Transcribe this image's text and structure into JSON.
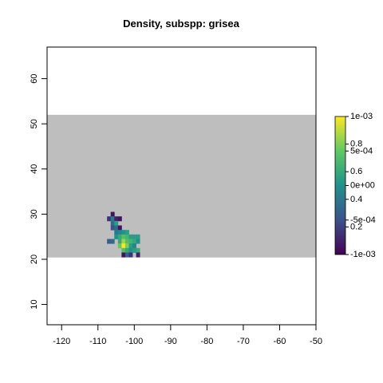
{
  "title": "Density, subspp: grisea",
  "chart_data": {
    "type": "heatmap",
    "title": "Density, subspp: grisea",
    "xlabel": "",
    "ylabel": "",
    "xlim": [
      -124,
      -50
    ],
    "ylim": [
      5.5,
      67
    ],
    "x_ticks": [
      -120,
      -110,
      -100,
      -90,
      -80,
      -70,
      -60,
      -50
    ],
    "y_ticks": [
      10,
      20,
      30,
      40,
      50,
      60
    ],
    "study_region": {
      "x": [
        -124,
        -50
      ],
      "y": [
        20.4,
        52
      ],
      "color": "#bebebe"
    },
    "cell_size": 1,
    "colorbar": {
      "overlay_ticks": [
        {
          "label": "1e-03",
          "value": 1.0
        },
        {
          "label": "5e-04",
          "value": 0.75
        },
        {
          "label": "0e+00",
          "value": 0.5
        },
        {
          "label": "-5e-04",
          "value": 0.25
        },
        {
          "label": "-1e-03",
          "value": 0.0
        }
      ],
      "underlay_ticks": [
        {
          "label": "0.8",
          "value": 0.8
        },
        {
          "label": "0.6",
          "value": 0.6
        },
        {
          "label": "0.4",
          "value": 0.4
        },
        {
          "label": "0.2",
          "value": 0.2
        }
      ]
    },
    "cells": [
      {
        "x": -106,
        "y": 30,
        "v": 0.05
      },
      {
        "x": -107,
        "y": 29,
        "v": 0.15
      },
      {
        "x": -106,
        "y": 29,
        "v": 0.4
      },
      {
        "x": -105,
        "y": 29,
        "v": 0.1
      },
      {
        "x": -104,
        "y": 29,
        "v": 0.05
      },
      {
        "x": -106,
        "y": 28,
        "v": 0.35
      },
      {
        "x": -105,
        "y": 28,
        "v": 0.55
      },
      {
        "x": -106,
        "y": 27,
        "v": 0.25
      },
      {
        "x": -105,
        "y": 27,
        "v": 0.35
      },
      {
        "x": -104,
        "y": 27,
        "v": 0.05
      },
      {
        "x": -105,
        "y": 26,
        "v": 0.4
      },
      {
        "x": -104,
        "y": 26,
        "v": 0.45
      },
      {
        "x": -103,
        "y": 26,
        "v": 0.5
      },
      {
        "x": -102,
        "y": 26,
        "v": 0.55
      },
      {
        "x": -105,
        "y": 25,
        "v": 0.5
      },
      {
        "x": -104,
        "y": 25,
        "v": 0.6
      },
      {
        "x": -103,
        "y": 25,
        "v": 0.7
      },
      {
        "x": -102,
        "y": 25,
        "v": 0.65
      },
      {
        "x": -101,
        "y": 25,
        "v": 0.55
      },
      {
        "x": -100,
        "y": 25,
        "v": 0.55
      },
      {
        "x": -99,
        "y": 25,
        "v": 0.55
      },
      {
        "x": -107,
        "y": 24,
        "v": 0.3
      },
      {
        "x": -106,
        "y": 24,
        "v": 0.35
      },
      {
        "x": -104,
        "y": 24,
        "v": 0.6
      },
      {
        "x": -103,
        "y": 24,
        "v": 0.85
      },
      {
        "x": -102,
        "y": 24,
        "v": 0.7
      },
      {
        "x": -101,
        "y": 24,
        "v": 0.65
      },
      {
        "x": -100,
        "y": 24,
        "v": 0.6
      },
      {
        "x": -99,
        "y": 24,
        "v": 0.5
      },
      {
        "x": -104,
        "y": 23,
        "v": 0.75
      },
      {
        "x": -103,
        "y": 23,
        "v": 1.0
      },
      {
        "x": -102,
        "y": 23,
        "v": 0.8
      },
      {
        "x": -101,
        "y": 23,
        "v": 0.55
      },
      {
        "x": -100,
        "y": 23,
        "v": 0.45
      },
      {
        "x": -103,
        "y": 22,
        "v": 0.7
      },
      {
        "x": -102,
        "y": 22,
        "v": 0.6
      },
      {
        "x": -101,
        "y": 22,
        "v": 0.5
      },
      {
        "x": -100,
        "y": 22,
        "v": 0.55
      },
      {
        "x": -99,
        "y": 22,
        "v": 0.6
      },
      {
        "x": -103,
        "y": 21,
        "v": 0.05
      },
      {
        "x": -102,
        "y": 21,
        "v": 0.3
      },
      {
        "x": -101,
        "y": 21,
        "v": 0.15
      },
      {
        "x": -99,
        "y": 21,
        "v": 0.1
      }
    ]
  }
}
